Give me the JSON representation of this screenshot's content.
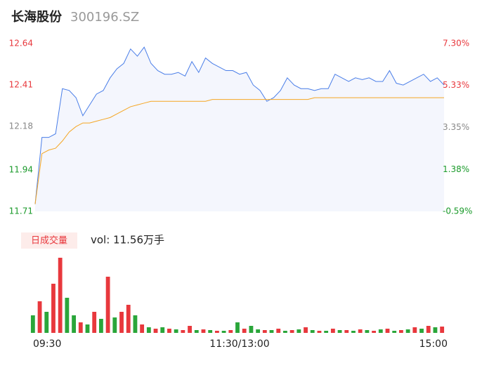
{
  "chart_data": [
    {
      "type": "line",
      "title": "长海股份",
      "subtitle": "300196.SZ",
      "x": [
        0,
        4,
        8,
        12,
        16,
        20,
        24,
        28,
        32,
        36,
        40,
        44,
        48,
        52,
        56,
        60,
        64,
        68,
        72,
        76,
        80,
        84,
        88,
        92,
        96,
        100,
        104,
        108,
        112,
        116,
        120,
        124,
        128,
        132,
        136,
        140,
        144,
        148,
        152,
        156,
        160,
        164,
        168,
        172,
        176,
        180,
        184,
        188,
        192,
        196,
        200,
        204,
        208,
        212,
        216,
        220,
        224,
        228,
        232,
        236,
        240
      ],
      "xlim": [
        0,
        240
      ],
      "xticks": [
        {
          "value": 0,
          "label": "09:30"
        },
        {
          "value": 120,
          "label": "11:30/13:00"
        },
        {
          "value": 240,
          "label": "15:00"
        }
      ],
      "ylim": [
        11.71,
        12.64
      ],
      "yticks": [
        11.71,
        11.94,
        12.18,
        12.41,
        12.64
      ],
      "ytick_colors": [
        "#1a9a2a",
        "#1a9a2a",
        "#888888",
        "#e8383d",
        "#e8383d"
      ],
      "y2lim": [
        -0.59,
        7.3
      ],
      "y2ticks": [
        {
          "value": -0.59,
          "label": "-0.59%"
        },
        {
          "value": 1.38,
          "label": "1.38%"
        },
        {
          "value": 3.35,
          "label": "3.35%"
        },
        {
          "value": 5.33,
          "label": "5.33%"
        },
        {
          "value": 7.3,
          "label": "7.30%"
        }
      ],
      "area_color": "#f4f6fd",
      "series": [
        {
          "color": "#4a7ee8",
          "values": [
            11.75,
            12.12,
            12.12,
            12.14,
            12.39,
            12.38,
            12.34,
            12.24,
            12.3,
            12.36,
            12.38,
            12.45,
            12.5,
            12.53,
            12.61,
            12.57,
            12.62,
            12.53,
            12.49,
            12.47,
            12.47,
            12.48,
            12.46,
            12.54,
            12.48,
            12.56,
            12.53,
            12.51,
            12.49,
            12.49,
            12.47,
            12.48,
            12.41,
            12.38,
            12.32,
            12.34,
            12.38,
            12.45,
            12.41,
            12.39,
            12.39,
            12.38,
            12.39,
            12.39,
            12.47,
            12.45,
            12.43,
            12.45,
            12.44,
            12.45,
            12.43,
            12.43,
            12.49,
            12.42,
            12.41,
            12.43,
            12.45,
            12.47,
            12.43,
            12.45,
            12.41
          ]
        },
        {
          "color": "#f5a623",
          "values": [
            11.75,
            12.03,
            12.05,
            12.06,
            12.1,
            12.15,
            12.18,
            12.2,
            12.2,
            12.21,
            12.22,
            12.23,
            12.25,
            12.27,
            12.29,
            12.3,
            12.31,
            12.32,
            12.32,
            12.32,
            12.32,
            12.32,
            12.32,
            12.32,
            12.32,
            12.32,
            12.33,
            12.33,
            12.33,
            12.33,
            12.33,
            12.33,
            12.33,
            12.33,
            12.33,
            12.33,
            12.33,
            12.33,
            12.33,
            12.33,
            12.33,
            12.34,
            12.34,
            12.34,
            12.34,
            12.34,
            12.34,
            12.34,
            12.34,
            12.34,
            12.34,
            12.34,
            12.34,
            12.34,
            12.34,
            12.34,
            12.34,
            12.34,
            12.34,
            12.34,
            12.34
          ]
        }
      ]
    },
    {
      "type": "bar",
      "title": "日成交量",
      "annotation": "vol: 11.56万手",
      "ylim": [
        0,
        110
      ],
      "values": [
        25,
        45,
        30,
        70,
        107,
        50,
        25,
        15,
        12,
        30,
        20,
        80,
        22,
        30,
        40,
        25,
        12,
        8,
        6,
        8,
        6,
        5,
        4,
        10,
        4,
        5,
        4,
        3,
        3,
        4,
        15,
        6,
        10,
        5,
        4,
        4,
        6,
        3,
        4,
        5,
        8,
        4,
        3,
        3,
        6,
        4,
        4,
        3,
        5,
        4,
        3,
        5,
        6,
        3,
        4,
        5,
        8,
        6,
        10,
        8,
        9
      ],
      "colors": [
        "#2aa63a",
        "#e8383d",
        "#2aa63a",
        "#e8383d",
        "#e8383d",
        "#2aa63a",
        "#2aa63a",
        "#e8383d",
        "#2aa63a",
        "#e8383d",
        "#2aa63a",
        "#e8383d",
        "#2aa63a",
        "#e8383d",
        "#e8383d",
        "#2aa63a",
        "#e8383d",
        "#2aa63a",
        "#e8383d",
        "#2aa63a",
        "#e8383d",
        "#2aa63a",
        "#e8383d",
        "#e8383d",
        "#2aa63a",
        "#e8383d",
        "#2aa63a",
        "#e8383d",
        "#2aa63a",
        "#e8383d",
        "#2aa63a",
        "#e8383d",
        "#2aa63a",
        "#2aa63a",
        "#e8383d",
        "#2aa63a",
        "#e8383d",
        "#2aa63a",
        "#e8383d",
        "#2aa63a",
        "#e8383d",
        "#2aa63a",
        "#e8383d",
        "#2aa63a",
        "#e8383d",
        "#2aa63a",
        "#e8383d",
        "#2aa63a",
        "#e8383d",
        "#2aa63a",
        "#e8383d",
        "#2aa63a",
        "#e8383d",
        "#2aa63a",
        "#e8383d",
        "#2aa63a",
        "#e8383d",
        "#2aa63a",
        "#e8383d",
        "#2aa63a",
        "#e8383d"
      ]
    }
  ]
}
